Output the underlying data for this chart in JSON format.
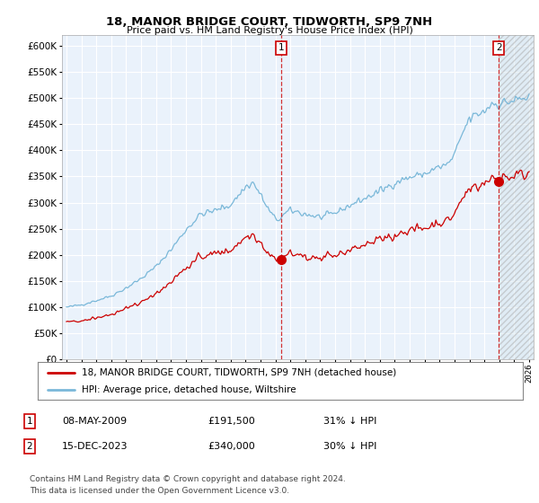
{
  "title": "18, MANOR BRIDGE COURT, TIDWORTH, SP9 7NH",
  "subtitle": "Price paid vs. HM Land Registry's House Price Index (HPI)",
  "ylim": [
    0,
    620000
  ],
  "yticks": [
    0,
    50000,
    100000,
    150000,
    200000,
    250000,
    300000,
    350000,
    400000,
    450000,
    500000,
    550000,
    600000
  ],
  "bg_color": "#ffffff",
  "plot_bg": "#eaf2fb",
  "grid_color": "#ffffff",
  "hpi_color": "#7ab8d9",
  "price_color": "#cc0000",
  "transaction1_date": "08-MAY-2009",
  "transaction1_price": 191500,
  "transaction1_hpi_pct": "31% ↓ HPI",
  "transaction2_date": "15-DEC-2023",
  "transaction2_price": 340000,
  "transaction2_hpi_pct": "30% ↓ HPI",
  "legend_label_price": "18, MANOR BRIDGE COURT, TIDWORTH, SP9 7NH (detached house)",
  "legend_label_hpi": "HPI: Average price, detached house, Wiltshire",
  "footer": "Contains HM Land Registry data © Crown copyright and database right 2024.\nThis data is licensed under the Open Government Licence v3.0.",
  "marker1_year": 2009.37,
  "marker2_year": 2023.96,
  "xlim_start": 1994.7,
  "xlim_end": 2026.3
}
